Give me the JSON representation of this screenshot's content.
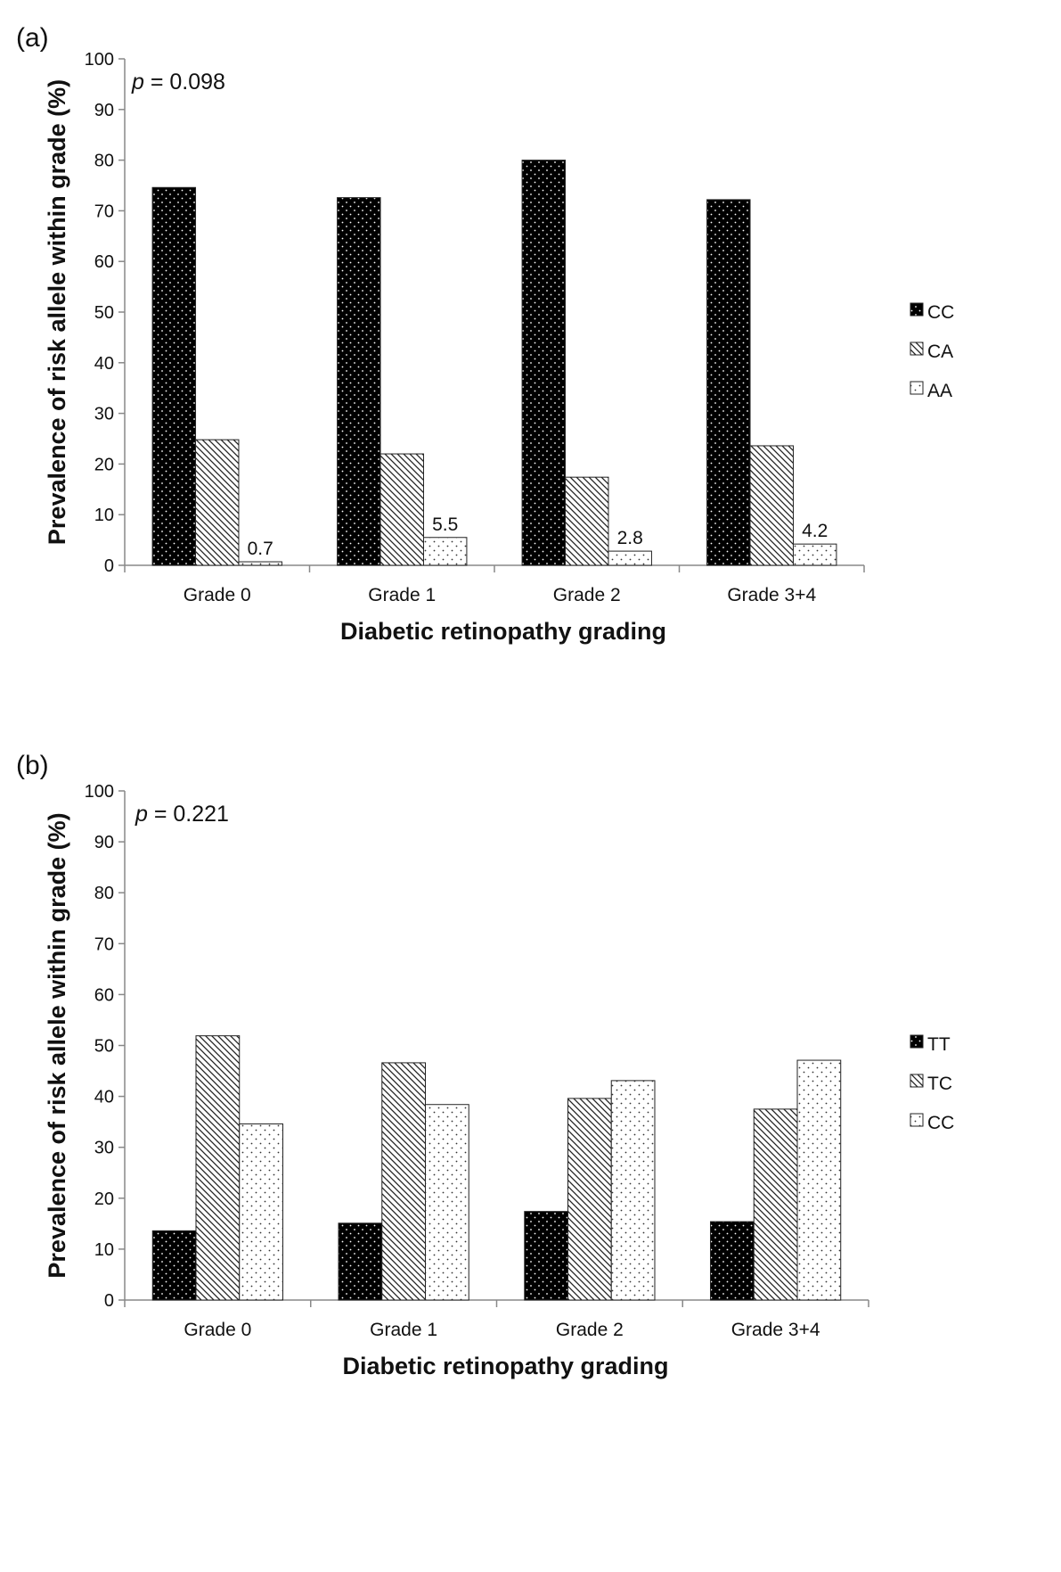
{
  "chart_data": [
    {
      "panel_label": "(a)",
      "type": "bar",
      "annotation": "p = 0.098",
      "annotation_stat_symbol": "p",
      "annotation_stat_value": "= 0.098",
      "xlabel": "Diabetic retinopathy grading",
      "ylabel": "Prevalence of risk allele within grade (%)",
      "ylim": [
        0,
        100
      ],
      "yticks": [
        0,
        10,
        20,
        30,
        40,
        50,
        60,
        70,
        80,
        90,
        100
      ],
      "categories": [
        "Grade 0",
        "Grade 1",
        "Grade 2",
        "Grade 3+4"
      ],
      "legend_position": "right",
      "series": [
        {
          "name": "CC",
          "pattern": "dark-dots",
          "values": [
            74.6,
            72.6,
            80.0,
            72.2
          ]
        },
        {
          "name": "CA",
          "pattern": "diagonal-hatch",
          "values": [
            24.8,
            22.0,
            17.4,
            23.6
          ]
        },
        {
          "name": "AA",
          "pattern": "light-dots",
          "values": [
            0.7,
            5.5,
            2.8,
            4.2
          ]
        }
      ],
      "data_labels": {
        "series_index": 2,
        "labels": [
          "0.7",
          "5.5",
          "2.8",
          "4.2"
        ]
      }
    },
    {
      "panel_label": "(b)",
      "type": "bar",
      "annotation": "p = 0.221",
      "annotation_stat_symbol": "p",
      "annotation_stat_value": "= 0.221",
      "xlabel": "Diabetic retinopathy grading",
      "ylabel": "Prevalence of risk allele within grade (%)",
      "ylim": [
        0,
        100
      ],
      "yticks": [
        0,
        10,
        20,
        30,
        40,
        50,
        60,
        70,
        80,
        90,
        100
      ],
      "categories": [
        "Grade 0",
        "Grade 1",
        "Grade 2",
        "Grade 3+4"
      ],
      "legend_position": "right",
      "series": [
        {
          "name": "TT",
          "pattern": "dark-dots",
          "values": [
            13.6,
            15.1,
            17.4,
            15.4
          ]
        },
        {
          "name": "TC",
          "pattern": "diagonal-hatch",
          "values": [
            51.9,
            46.6,
            39.6,
            37.5
          ]
        },
        {
          "name": "CC",
          "pattern": "light-dots",
          "values": [
            34.6,
            38.4,
            43.1,
            47.1
          ]
        }
      ]
    }
  ]
}
